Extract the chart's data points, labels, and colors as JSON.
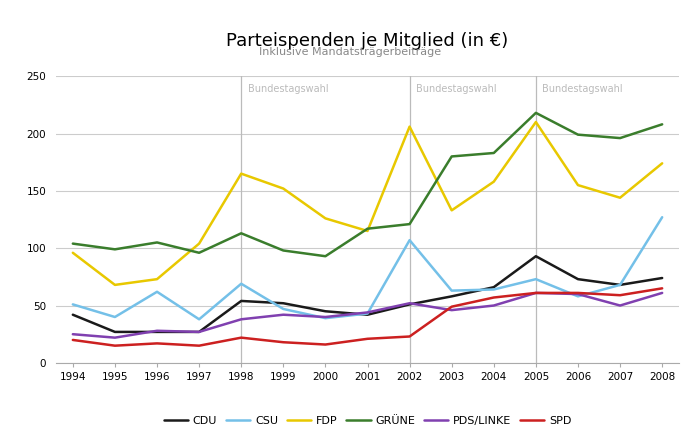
{
  "title": "Parteispenden je Mitglied (in €)",
  "subtitle": "Inklusive Mandatsträgerbeiträge",
  "years": [
    1994,
    1995,
    1996,
    1997,
    1998,
    1999,
    2000,
    2001,
    2002,
    2003,
    2004,
    2005,
    2006,
    2007,
    2008
  ],
  "bundestagswahl_years": [
    1998,
    2002,
    2005
  ],
  "bundestagswahl_label": "Bundestagswahl",
  "bundestagswahl_color": "#bbbbbb",
  "series": {
    "CDU": {
      "values": [
        42,
        27,
        27,
        27,
        54,
        52,
        45,
        42,
        51,
        58,
        66,
        93,
        73,
        68,
        74
      ],
      "color": "#1a1a1a"
    },
    "CSU": {
      "values": [
        51,
        40,
        62,
        38,
        69,
        47,
        39,
        43,
        107,
        63,
        64,
        73,
        58,
        68,
        127
      ],
      "color": "#74c0e8"
    },
    "FDP": {
      "values": [
        96,
        68,
        73,
        104,
        165,
        152,
        126,
        115,
        206,
        133,
        158,
        210,
        155,
        144,
        174
      ],
      "color": "#e8c800"
    },
    "GRÜNE": {
      "values": [
        104,
        99,
        105,
        96,
        113,
        98,
        93,
        117,
        121,
        180,
        183,
        218,
        199,
        196,
        208
      ],
      "color": "#3a7d2c"
    },
    "PDS/LINKE": {
      "values": [
        25,
        22,
        28,
        27,
        38,
        42,
        40,
        44,
        52,
        46,
        50,
        61,
        60,
        50,
        61
      ],
      "color": "#8040b0"
    },
    "SPD": {
      "values": [
        20,
        15,
        17,
        15,
        22,
        18,
        16,
        21,
        23,
        49,
        57,
        61,
        61,
        59,
        65
      ],
      "color": "#cc2020"
    }
  },
  "ylim": [
    0,
    250
  ],
  "yticks": [
    0,
    50,
    100,
    150,
    200,
    250
  ],
  "background_color": "#ffffff",
  "grid_color": "#cccccc",
  "linewidth": 1.8
}
